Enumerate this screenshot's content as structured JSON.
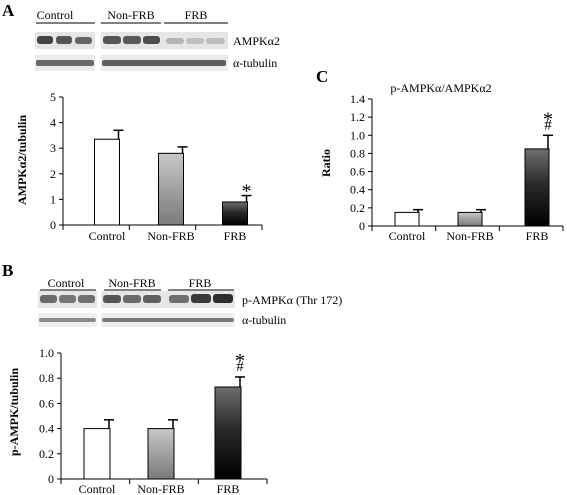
{
  "panels": [
    {
      "letter": "A",
      "blot": {
        "lanes": [
          "Control",
          "Non-FRB",
          "FRB"
        ],
        "proteins": [
          "AMPKα2",
          "α-tubulin"
        ]
      }
    },
    {
      "letter": "B",
      "blot": {
        "lanes": [
          "Control",
          "Non-FRB",
          "FRB"
        ],
        "proteins": [
          "p-AMPKα (Thr 172)",
          "α-tubulin"
        ]
      }
    },
    {
      "letter": "C"
    }
  ],
  "chart_data": [
    {
      "panel": "A",
      "type": "bar",
      "title": "",
      "ylabel": "AMPKα2/tubulin",
      "xlabel": "",
      "categories": [
        "Control",
        "Non-FRB",
        "FRB"
      ],
      "values": [
        3.35,
        2.8,
        0.9
      ],
      "errors": [
        0.35,
        0.25,
        0.25
      ],
      "ylim": [
        0,
        5
      ],
      "yticks": [
        "0",
        "1",
        "2",
        "3",
        "4",
        "5"
      ],
      "annotations": [
        "",
        "",
        "*"
      ],
      "bar_fills": [
        "white",
        "gray-gradient",
        "black-gradient"
      ]
    },
    {
      "panel": "B",
      "type": "bar",
      "title": "",
      "ylabel": "p-AMPK/tubulin",
      "xlabel": "",
      "categories": [
        "Control",
        "Non-FRB",
        "FRB"
      ],
      "values": [
        0.4,
        0.4,
        0.73
      ],
      "errors": [
        0.07,
        0.07,
        0.08
      ],
      "ylim": [
        0,
        1.0
      ],
      "yticks": [
        "0",
        "0.2",
        "0.4",
        "0.6",
        "0.8",
        "1.0"
      ],
      "annotations": [
        "",
        "",
        "*\n#"
      ],
      "bar_fills": [
        "white",
        "gray-gradient",
        "black-gradient"
      ]
    },
    {
      "panel": "C",
      "type": "bar",
      "title": "p-AMPKα/AMPKα2",
      "ylabel": "Ratio",
      "xlabel": "",
      "categories": [
        "Control",
        "Non-FRB",
        "FRB"
      ],
      "values": [
        0.15,
        0.15,
        0.85
      ],
      "errors": [
        0.03,
        0.03,
        0.15
      ],
      "ylim": [
        0,
        1.4
      ],
      "yticks": [
        "0",
        "0.2",
        "0.4",
        "0.6",
        "0.8",
        "1.0",
        "1.2",
        "1.4"
      ],
      "annotations": [
        "",
        "",
        "*\n#"
      ],
      "bar_fills": [
        "white",
        "gray-gradient",
        "black-gradient"
      ]
    }
  ]
}
